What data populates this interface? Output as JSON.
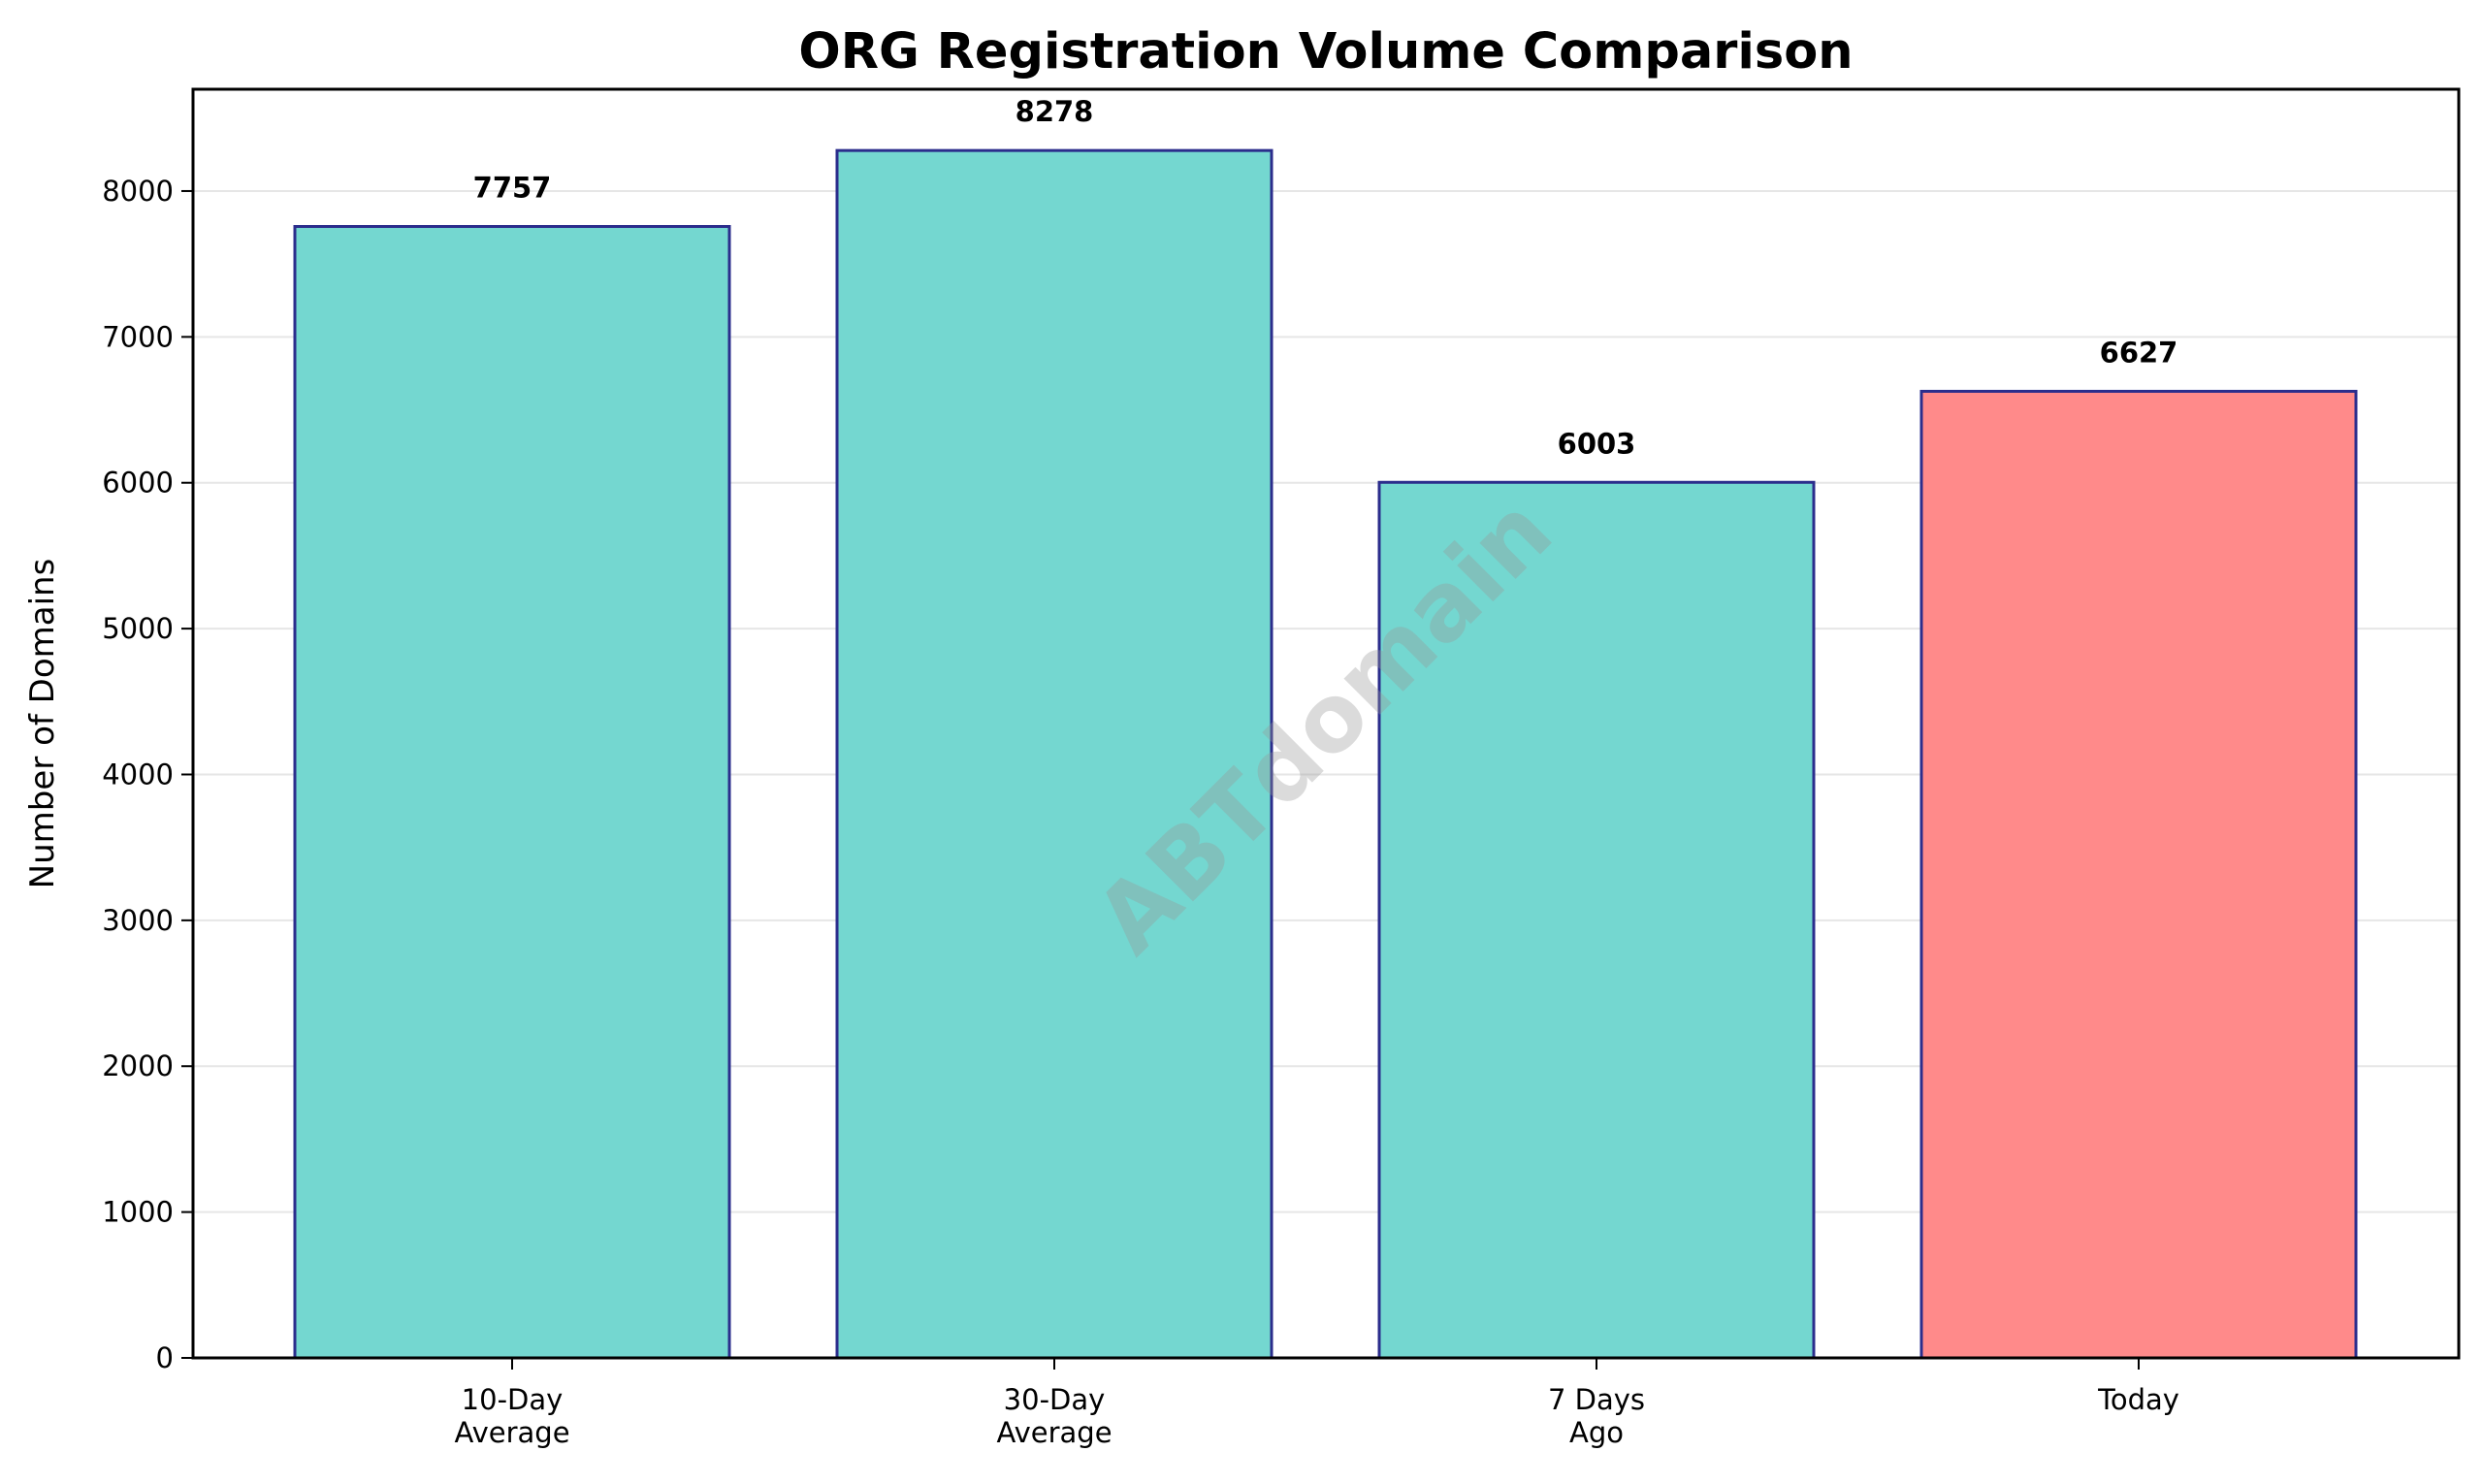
{
  "chart_data": {
    "type": "bar",
    "title": "ORG Registration Volume Comparison",
    "xlabel": "",
    "ylabel": "Number of Domains",
    "categories": [
      "10-Day\nAverage",
      "30-Day\nAverage",
      "7 Days\nAgo",
      "Today"
    ],
    "category_lines": [
      [
        "10-Day",
        "Average"
      ],
      [
        "30-Day",
        "Average"
      ],
      [
        "7 Days",
        "Ago"
      ],
      [
        "Today"
      ]
    ],
    "values": [
      7757,
      8278,
      6003,
      6627
    ],
    "value_labels": [
      "7757",
      "8278",
      "6003",
      "6627"
    ],
    "bar_colors": [
      "#74D7D0",
      "#74D7D0",
      "#74D7D0",
      "#FF8A8A"
    ],
    "bar_edge_color": "#2B2D8C",
    "ylim": [
      0,
      8698
    ],
    "yticks": [
      0,
      1000,
      2000,
      3000,
      4000,
      5000,
      6000,
      7000,
      8000
    ],
    "grid": {
      "axis": "y",
      "color": "#E6E6E6"
    },
    "legend": null,
    "watermark": "ABTdomain"
  }
}
